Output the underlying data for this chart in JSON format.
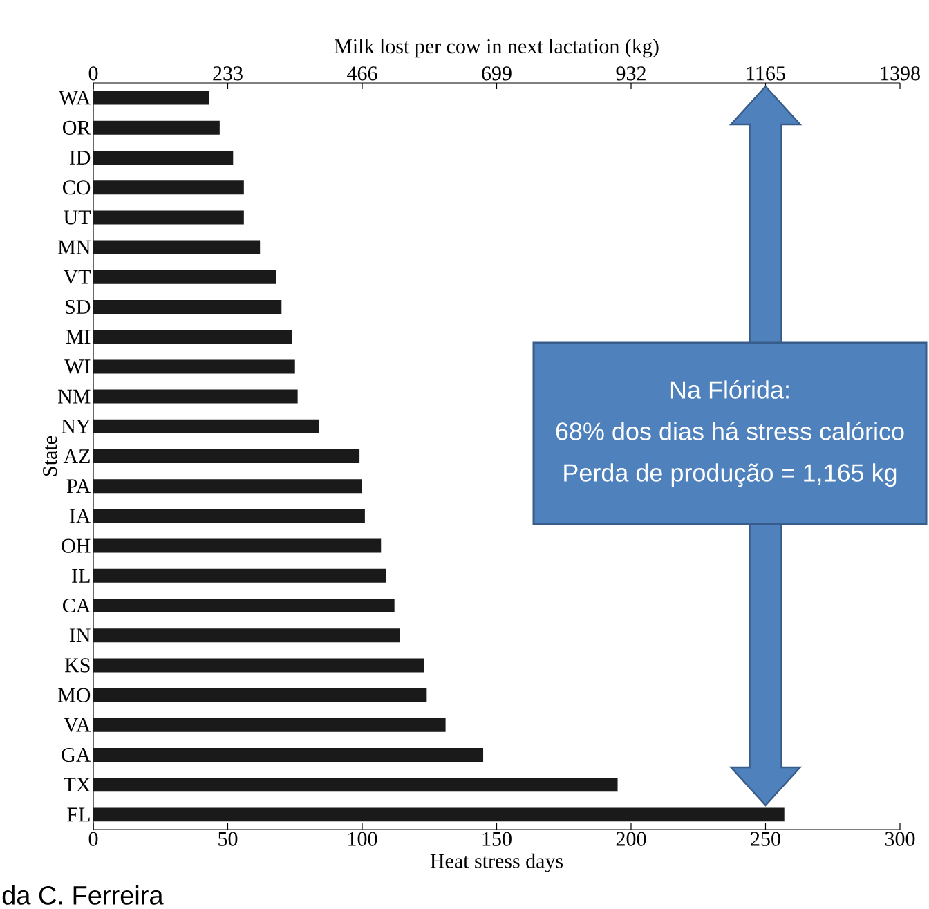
{
  "chart_data": {
    "type": "bar",
    "orientation": "horizontal",
    "categories": [
      "WA",
      "OR",
      "ID",
      "CO",
      "UT",
      "MN",
      "VT",
      "SD",
      "MI",
      "WI",
      "NM",
      "NY",
      "AZ",
      "PA",
      "IA",
      "OH",
      "IL",
      "CA",
      "IN",
      "KS",
      "MO",
      "VA",
      "GA",
      "TX",
      "FL"
    ],
    "values": [
      43,
      47,
      52,
      56,
      56,
      62,
      68,
      70,
      74,
      75,
      76,
      84,
      99,
      100,
      101,
      107,
      109,
      112,
      114,
      123,
      124,
      131,
      145,
      195,
      257
    ],
    "color": "#1a1a1a",
    "xlim": [
      0,
      300
    ],
    "xticks": [
      0,
      50,
      100,
      150,
      200,
      250,
      300
    ],
    "x2lim": [
      0,
      1398
    ],
    "x2ticks": [
      0,
      233,
      466,
      699,
      932,
      1165,
      1398
    ],
    "xlabel": "Heat stress days",
    "x2label": "Milk lost per cow in next lactation (kg)",
    "ylabel": "State",
    "annotations": [
      "Na Flórida:",
      "68% dos dias há stress calórico",
      "Perda de produção = 1,165 kg",
      "da C. Ferreira"
    ]
  }
}
